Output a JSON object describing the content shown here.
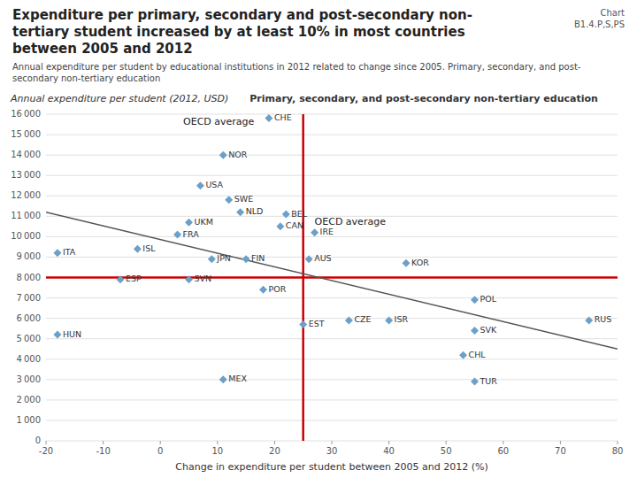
{
  "chart_data": {
    "type": "scatter",
    "title": "Expenditure per primary, secondary and post-secondary non-\ntertiary student increased by at least 10% in most countries\nbetween 2005 and 2012",
    "subtitle": "Annual expenditure per student by educational institutions in 2012 related to change since 2005. Primary, secondary, and post-secondary non-tertiary education",
    "x_label": "Change in expenditure per  student between 2005 and 2012 (%)",
    "y_label": "Annual expenditure per student  (2012, USD)",
    "annotations": [
      {
        "text": "Chart\nB1.4.P,S,PS"
      },
      {
        "text": "Primary, secondary, and post-secondary non-tertiary education"
      },
      {
        "text": "OECD average",
        "x": 4,
        "y": 15600
      },
      {
        "text": "OECD average",
        "x": 27,
        "y": 10700
      }
    ],
    "labels": [
      "CHE",
      "NOR",
      "USA",
      "SWE",
      "NLD",
      "BEL",
      "UKM",
      "CAN",
      "FRA",
      "IRE",
      "ISL",
      "ITA",
      "JPN",
      "FIN",
      "AUS",
      "KOR",
      "ESP",
      "SVN",
      "POR",
      "POL",
      "EST",
      "CZE",
      "ISR",
      "SVK",
      "RUS",
      "HUN",
      "CHL",
      "MEX",
      "TUR"
    ],
    "x": [
      19,
      11,
      7,
      12,
      14,
      22,
      5,
      21,
      3,
      27,
      -4,
      -18,
      9,
      15,
      26,
      43,
      -7,
      5,
      18,
      55,
      25,
      33,
      40,
      55,
      75,
      -18,
      53,
      11,
      55
    ],
    "values": [
      15800,
      14000,
      12500,
      11800,
      11200,
      11100,
      10700,
      10500,
      10100,
      10200,
      9400,
      9200,
      8900,
      8900,
      8900,
      8700,
      7900,
      7900,
      7400,
      6900,
      5700,
      5900,
      5900,
      5400,
      5900,
      5200,
      4200,
      3000,
      2900
    ],
    "color": "#6ca0c8",
    "marker": "diamond",
    "reference_lines": {
      "x": 25,
      "y": 8000,
      "color": "#cc0000"
    },
    "trend": {
      "x": [
        -20,
        80
      ],
      "values": [
        11200,
        4500
      ]
    },
    "xlim": [
      -20,
      80
    ],
    "ylim": [
      0,
      16000
    ],
    "xticks": [
      -20,
      -10,
      0,
      10,
      20,
      30,
      40,
      50,
      60,
      70,
      80
    ],
    "yticks": [
      0,
      {
        "value": 1000,
        "label": "1 000"
      },
      {
        "value": 2000,
        "label": "2 000"
      },
      {
        "value": 3000,
        "label": "3 000"
      },
      {
        "value": 4000,
        "label": "4 000"
      },
      {
        "value": 5000,
        "label": "5 000"
      },
      {
        "value": 6000,
        "label": "6 000"
      },
      {
        "value": 7000,
        "label": "7 000"
      },
      {
        "value": 8000,
        "label": "8 000"
      },
      {
        "value": 9000,
        "label": "9 000"
      },
      {
        "value": 10000,
        "label": "10 000"
      },
      {
        "value": 11000,
        "label": "11 000"
      },
      {
        "value": 12000,
        "label": "12 000"
      },
      {
        "value": 13000,
        "label": "13 000"
      },
      {
        "value": 14000,
        "label": "14 000"
      },
      {
        "value": 15000,
        "label": "15 000"
      },
      {
        "value": 16000,
        "label": "16 000"
      }
    ],
    "grid": "y"
  }
}
